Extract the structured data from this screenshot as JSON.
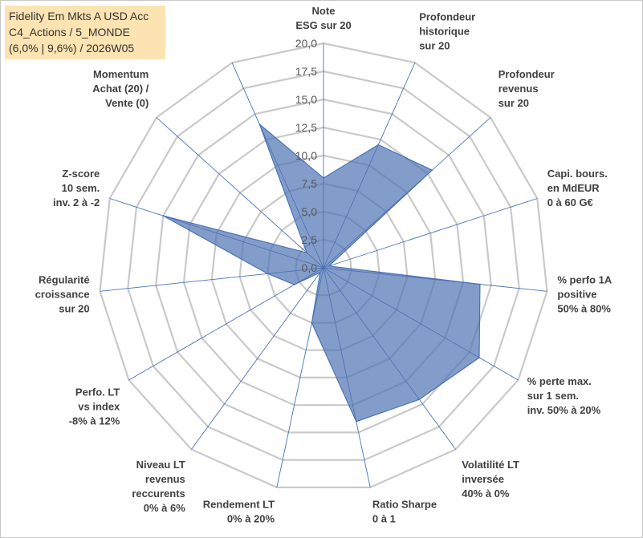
{
  "title_lines": [
    "Fidelity Em Mkts A USD Acc",
    "C4_Actions / 5_MONDE",
    "(6,0% | 9,6%) / 2026W05"
  ],
  "chart_data": {
    "type": "radar",
    "rmin": 0,
    "rmax": 20,
    "tick_values": [
      0,
      2.5,
      5,
      7.5,
      10,
      12.5,
      15,
      17.5,
      20
    ],
    "tick_labels": [
      "0,0",
      "2,5",
      "5,0",
      "7,5",
      "10,0",
      "12,5",
      "15,0",
      "17,5",
      "20,0"
    ],
    "series": [
      {
        "name": "Fidelity Em Mkts A USD Acc",
        "color": "#4a72b8",
        "fill": "#4f74b3",
        "fill_opacity": 0.7,
        "values": [
          8.0,
          12.0,
          13.0,
          0.5,
          14.0,
          16.0,
          14.5,
          14.0,
          5.0,
          0.5,
          3.0,
          5.0,
          15.0,
          2.0,
          14.0
        ]
      }
    ],
    "axes": [
      {
        "name": "note-esg",
        "lines": [
          "Note",
          "ESG sur 20"
        ]
      },
      {
        "name": "profondeur-historique",
        "lines": [
          "Profondeur",
          "historique",
          "sur 20"
        ]
      },
      {
        "name": "profondeur-revenus",
        "lines": [
          "Profondeur",
          "revenus",
          "sur 20"
        ]
      },
      {
        "name": "capi-bours",
        "lines": [
          "Capi. bours.",
          "en MdEUR",
          "0 à 60 G€"
        ]
      },
      {
        "name": "perfo-1a-positive",
        "lines": [
          "% perfo 1A",
          "positive",
          "50% à 80%"
        ]
      },
      {
        "name": "perte-max",
        "lines": [
          "% perte max.",
          "sur 1 sem.",
          "inv. 50% à 20%"
        ]
      },
      {
        "name": "volatilite-lt",
        "lines": [
          "Volatilité LT",
          "inversée",
          "40% à 0%"
        ]
      },
      {
        "name": "ratio-sharpe",
        "lines": [
          "Ratio Sharpe",
          "0 à 1"
        ]
      },
      {
        "name": "rendement-lt",
        "lines": [
          "Rendement LT",
          "0% à 20%"
        ]
      },
      {
        "name": "niveau-lt-revenus",
        "lines": [
          "Niveau LT",
          "revenus",
          "reccurents",
          "0% à 6%"
        ]
      },
      {
        "name": "perfo-lt-vs-index",
        "lines": [
          "Perfo. LT",
          "vs index",
          "-8% à 12%"
        ]
      },
      {
        "name": "regularite-croissance",
        "lines": [
          "Régularité",
          "croissance",
          "sur 20"
        ]
      },
      {
        "name": "z-score",
        "lines": [
          "Z-score",
          "10 sem.",
          "inv. 2 à -2"
        ]
      },
      {
        "name": "momentum",
        "lines": [
          "Momentum",
          "Achat (20) /",
          "Vente (0)"
        ]
      },
      {
        "name": "axis-15-unlabeled",
        "lines": []
      }
    ]
  }
}
